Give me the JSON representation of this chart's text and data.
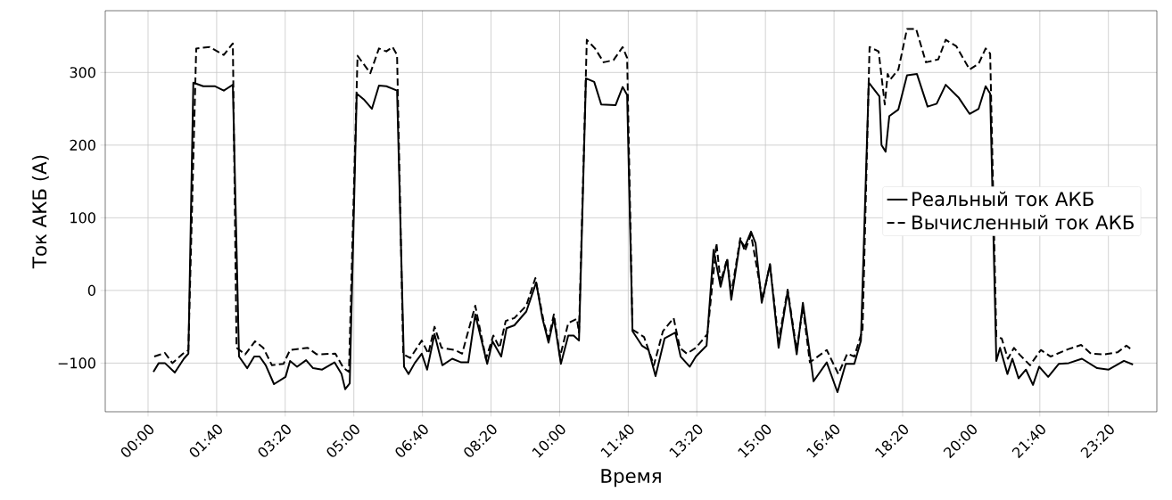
{
  "chart_data": {
    "type": "line",
    "xlabel": "Время",
    "ylabel": "Ток АКБ (А)",
    "xlim": [
      -1.04,
      24.51
    ],
    "ylim": [
      -167,
      385
    ],
    "xticks": [
      {
        "value": 0,
        "label": "00:00"
      },
      {
        "value": 1.667,
        "label": "01:40"
      },
      {
        "value": 3.333,
        "label": "03:20"
      },
      {
        "value": 5,
        "label": "05:00"
      },
      {
        "value": 6.667,
        "label": "06:40"
      },
      {
        "value": 8.333,
        "label": "08:20"
      },
      {
        "value": 10,
        "label": "10:00"
      },
      {
        "value": 11.667,
        "label": "11:40"
      },
      {
        "value": 13.333,
        "label": "13:20"
      },
      {
        "value": 15,
        "label": "15:00"
      },
      {
        "value": 16.667,
        "label": "16:40"
      },
      {
        "value": 18.333,
        "label": "18:20"
      },
      {
        "value": 20,
        "label": "20:00"
      },
      {
        "value": 21.667,
        "label": "21:40"
      },
      {
        "value": 23.333,
        "label": "23:20"
      }
    ],
    "yticks": [
      {
        "value": -100,
        "label": "−100"
      },
      0,
      100,
      200,
      300
    ],
    "grid": true,
    "legend": "right",
    "marker": "none",
    "series": [
      {
        "name": "Реальный ток АКБ",
        "color": "#000000",
        "line_style": "solid",
        "x": [
          0.13,
          0.26,
          0.41,
          0.65,
          0.87,
          0.98,
          1.1,
          1.34,
          1.63,
          1.84,
          2.06,
          2.21,
          2.41,
          2.58,
          2.71,
          2.86,
          3.06,
          3.34,
          3.45,
          3.62,
          3.84,
          4.01,
          4.23,
          4.53,
          4.7,
          4.79,
          4.9,
          5.07,
          5.24,
          5.44,
          5.61,
          5.79,
          6.05,
          6.22,
          6.33,
          6.48,
          6.65,
          6.78,
          6.96,
          7.15,
          7.39,
          7.61,
          7.78,
          7.95,
          8.24,
          8.37,
          8.58,
          8.71,
          8.9,
          9.19,
          9.43,
          9.58,
          9.73,
          9.86,
          10.03,
          10.21,
          10.34,
          10.47,
          10.64,
          10.84,
          11.01,
          11.36,
          11.53,
          11.64,
          11.77,
          12.0,
          12.16,
          12.33,
          12.55,
          12.81,
          12.94,
          13.16,
          13.31,
          13.57,
          13.74,
          13.91,
          14.07,
          14.17,
          14.39,
          14.5,
          14.65,
          14.76,
          14.91,
          15.11,
          15.32,
          15.54,
          15.76,
          15.91,
          16.17,
          16.49,
          16.75,
          16.95,
          17.16,
          17.32,
          17.51,
          17.77,
          17.82,
          17.92,
          18.01,
          18.23,
          18.44,
          18.68,
          18.94,
          19.16,
          19.38,
          19.7,
          19.96,
          20.18,
          20.35,
          20.46,
          20.61,
          20.7,
          20.88,
          21.0,
          21.15,
          21.33,
          21.5,
          21.65,
          21.87,
          22.13,
          22.37,
          22.69,
          23.06,
          23.34,
          23.71,
          23.93
        ],
        "values": [
          -112,
          -100,
          -100,
          -113,
          -94,
          -87,
          286,
          281,
          281,
          275,
          283,
          -91,
          -107,
          -91,
          -91,
          -103,
          -129,
          -119,
          -97,
          -105,
          -96,
          -107,
          -109,
          -99,
          -115,
          -136,
          -128,
          271,
          263,
          250,
          282,
          281,
          275,
          -105,
          -115,
          -100,
          -87,
          -109,
          -60,
          -103,
          -94,
          -99,
          -99,
          -33,
          -101,
          -70,
          -91,
          -52,
          -48,
          -29,
          11,
          -38,
          -72,
          -38,
          -101,
          -62,
          -62,
          -69,
          292,
          287,
          256,
          255,
          280,
          269,
          -56,
          -76,
          -82,
          -118,
          -66,
          -58,
          -91,
          -105,
          -91,
          -76,
          56,
          5,
          42,
          -13,
          69,
          60,
          81,
          65,
          -17,
          36,
          -79,
          -1,
          -88,
          -17,
          -125,
          -99,
          -140,
          -101,
          -101,
          -69,
          286,
          267,
          200,
          191,
          240,
          249,
          296,
          298,
          253,
          257,
          283,
          265,
          243,
          250,
          281,
          271,
          -97,
          -79,
          -115,
          -94,
          -121,
          -109,
          -130,
          -105,
          -119,
          -101,
          -100,
          -94,
          -107,
          -109,
          -97,
          -102
        ]
      },
      {
        "name": "Вычисленный ток АКБ",
        "color": "#000000",
        "line_style": "dashed",
        "x": [
          0.15,
          0.41,
          0.59,
          0.85,
          0.98,
          1.17,
          1.5,
          1.84,
          2.06,
          2.15,
          2.36,
          2.6,
          2.8,
          3.01,
          3.29,
          3.45,
          3.88,
          4.1,
          4.55,
          4.75,
          4.88,
          5.09,
          5.4,
          5.61,
          5.79,
          5.94,
          6.05,
          6.2,
          6.37,
          6.65,
          6.81,
          6.96,
          7.13,
          7.46,
          7.63,
          7.95,
          8.21,
          8.39,
          8.54,
          8.69,
          8.9,
          9.19,
          9.41,
          9.62,
          9.73,
          9.86,
          10.01,
          10.21,
          10.42,
          10.47,
          10.66,
          10.86,
          11.07,
          11.31,
          11.53,
          11.64,
          11.77,
          12.05,
          12.29,
          12.51,
          12.77,
          12.92,
          13.09,
          13.31,
          13.59,
          13.81,
          13.91,
          14.07,
          14.17,
          14.39,
          14.5,
          14.65,
          14.93,
          15.11,
          15.32,
          15.54,
          15.76,
          15.91,
          16.08,
          16.49,
          16.77,
          16.99,
          17.16,
          17.36,
          17.53,
          17.75,
          17.9,
          17.97,
          18.03,
          18.23,
          18.44,
          18.66,
          18.9,
          19.2,
          19.38,
          19.64,
          19.96,
          20.18,
          20.35,
          20.46,
          20.61,
          20.74,
          20.89,
          21.04,
          21.17,
          21.43,
          21.69,
          21.93,
          22.35,
          22.67,
          22.91,
          23.23,
          23.56,
          23.77,
          23.93
        ],
        "values": [
          -91,
          -86,
          -100,
          -87,
          -82,
          333,
          335,
          324,
          340,
          -79,
          -88,
          -70,
          -79,
          -103,
          -101,
          -82,
          -79,
          -88,
          -87,
          -107,
          -112,
          323,
          299,
          333,
          329,
          335,
          324,
          -88,
          -93,
          -69,
          -87,
          -50,
          -79,
          -82,
          -87,
          -21,
          -94,
          -62,
          -79,
          -42,
          -38,
          -21,
          17,
          -45,
          -66,
          -33,
          -91,
          -45,
          -39,
          -58,
          345,
          333,
          314,
          317,
          335,
          320,
          -54,
          -64,
          -103,
          -56,
          -38,
          -79,
          -87,
          -79,
          -60,
          65,
          11,
          44,
          -5,
          72,
          54,
          77,
          -13,
          36,
          -70,
          1,
          -82,
          -23,
          -99,
          -82,
          -115,
          -87,
          -91,
          -54,
          335,
          329,
          256,
          298,
          290,
          304,
          360,
          360,
          314,
          318,
          345,
          336,
          304,
          312,
          333,
          326,
          -64,
          -66,
          -94,
          -79,
          -88,
          -103,
          -82,
          -91,
          -81,
          -75,
          -87,
          -88,
          -85,
          -76,
          -83
        ]
      }
    ]
  }
}
